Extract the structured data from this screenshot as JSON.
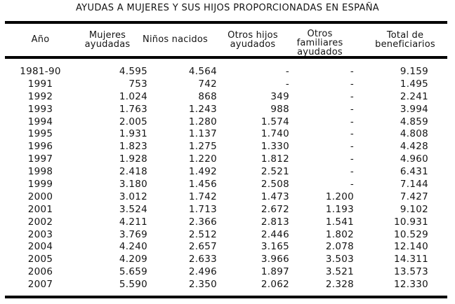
{
  "page": {
    "title": "AYUDAS A MUJERES Y SUS HIJOS PROPORCIONADAS EN ESPAÑA"
  },
  "table": {
    "columns": [
      "Año",
      "Mujeres ayudadas",
      "Niños nacidos",
      "Otros hijos ayudados",
      "Otros familiares ayudados",
      "Total de beneficiarios"
    ],
    "missing_value_marker": "-",
    "rows": [
      [
        "1981-90",
        "4.595",
        "4.564",
        "-",
        "-",
        "9.159"
      ],
      [
        "1991",
        "753",
        "742",
        "-",
        "-",
        "1.495"
      ],
      [
        "1992",
        "1.024",
        "868",
        "349",
        "-",
        "2.241"
      ],
      [
        "1993",
        "1.763",
        "1.243",
        "988",
        "-",
        "3.994"
      ],
      [
        "1994",
        "2.005",
        "1.280",
        "1.574",
        "-",
        "4.859"
      ],
      [
        "1995",
        "1.931",
        "1.137",
        "1.740",
        "-",
        "4.808"
      ],
      [
        "1996",
        "1.823",
        "1.275",
        "1.330",
        "-",
        "4.428"
      ],
      [
        "1997",
        "1.928",
        "1.220",
        "1.812",
        "-",
        "4.960"
      ],
      [
        "1998",
        "2.418",
        "1.492",
        "2.521",
        "-",
        "6.431"
      ],
      [
        "1999",
        "3.180",
        "1.456",
        "2.508",
        "-",
        "7.144"
      ],
      [
        "2000",
        "3.012",
        "1.742",
        "1.473",
        "1.200",
        "7.427"
      ],
      [
        "2001",
        "3.524",
        "1.713",
        "2.672",
        "1.193",
        "9.102"
      ],
      [
        "2002",
        "4.211",
        "2.366",
        "2.813",
        "1.541",
        "10.931"
      ],
      [
        "2003",
        "3.769",
        "2.512",
        "2.446",
        "1.802",
        "10.529"
      ],
      [
        "2004",
        "4.240",
        "2.657",
        "3.165",
        "2.078",
        "12.140"
      ],
      [
        "2005",
        "4.209",
        "2.633",
        "3.966",
        "3.503",
        "14.311"
      ],
      [
        "2006",
        "5.659",
        "2.496",
        "1.897",
        "3.521",
        "13.573"
      ],
      [
        "2007",
        "5.590",
        "2.350",
        "2.062",
        "2.328",
        "12.330"
      ]
    ]
  },
  "colors": {
    "text": "#141414",
    "rule": "#000000",
    "background": "#ffffff"
  }
}
